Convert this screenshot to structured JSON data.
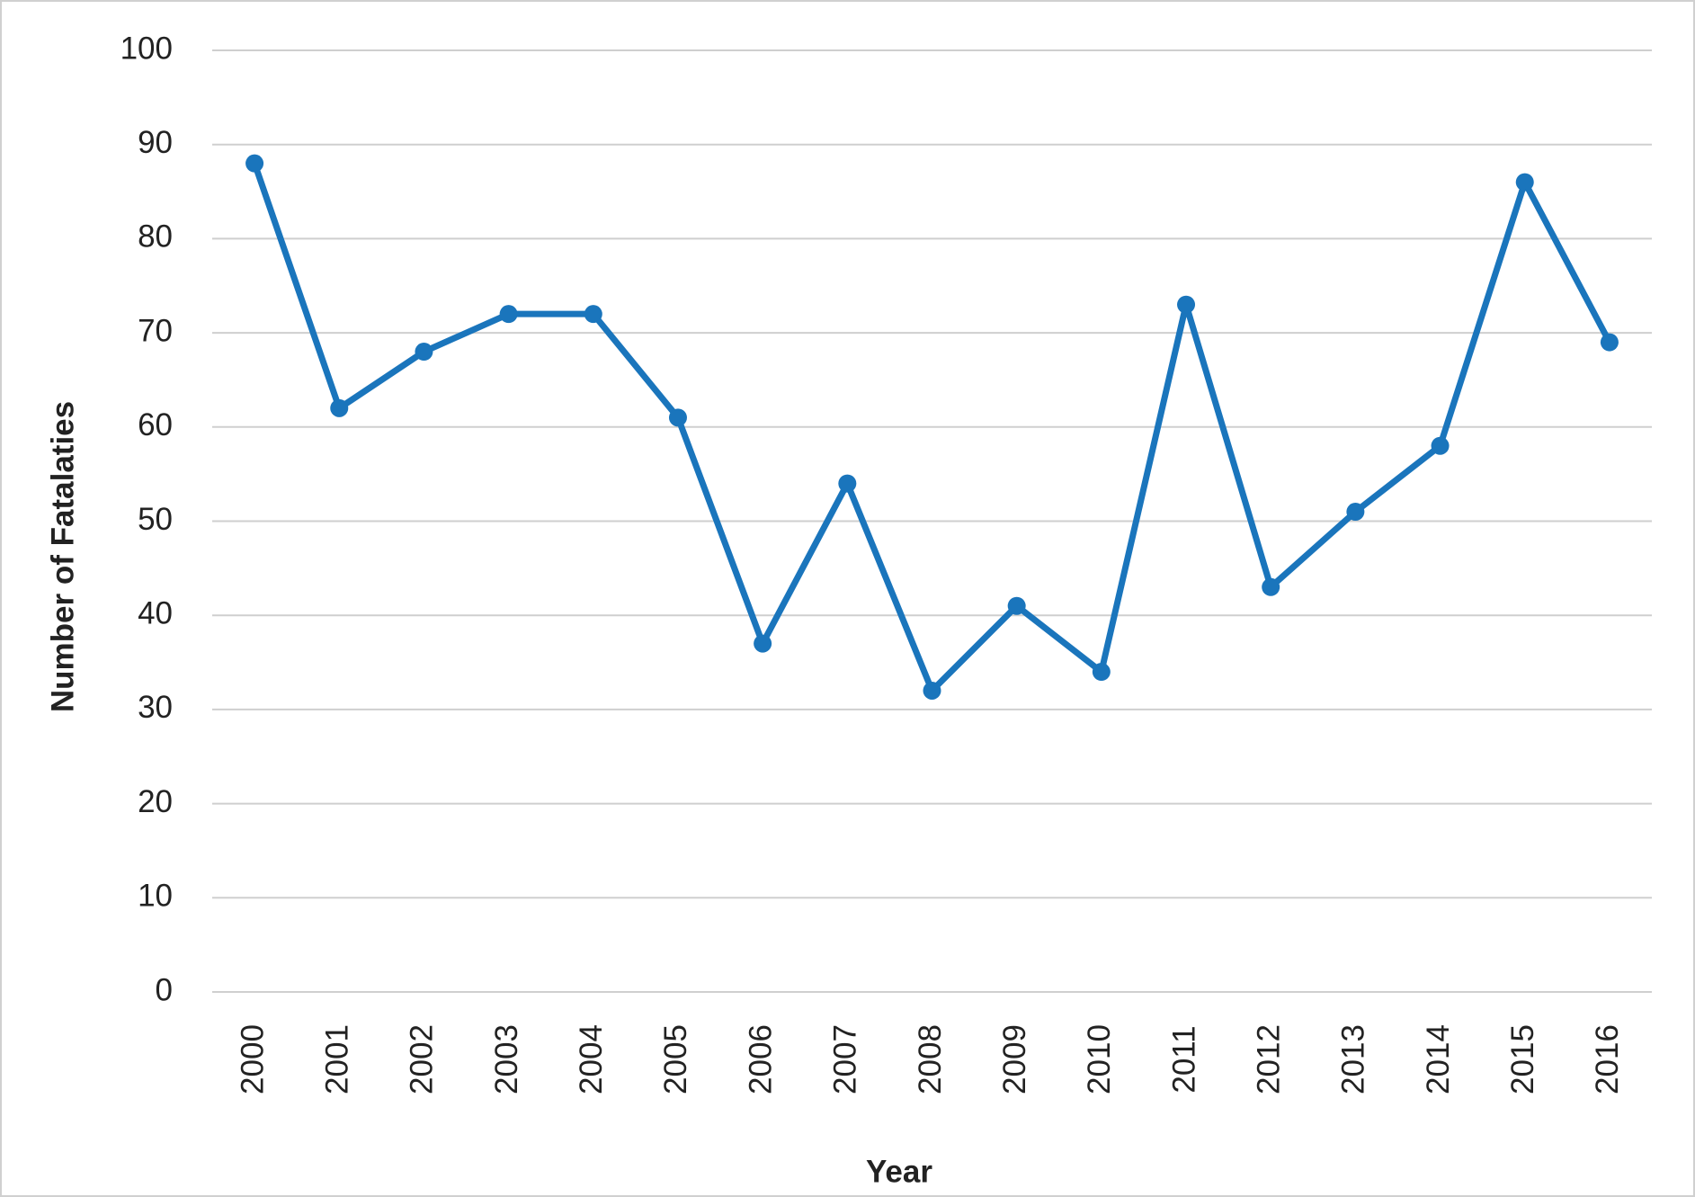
{
  "chart_data": {
    "type": "line",
    "x_label": "Year",
    "y_label": "Number of Fatalaties",
    "categories": [
      "2000",
      "2001",
      "2002",
      "2003",
      "2004",
      "2005",
      "2006",
      "2007",
      "2008",
      "2009",
      "2010",
      "2011",
      "2012",
      "2013",
      "2014",
      "2015",
      "2016"
    ],
    "series": [
      {
        "color": "#1a75bc",
        "values": [
          88,
          62,
          68,
          72,
          72,
          61,
          37,
          54,
          32,
          41,
          34,
          73,
          43,
          51,
          58,
          86,
          69
        ]
      }
    ],
    "ylim": [
      0,
      100
    ],
    "yticks": [
      0,
      10,
      20,
      30,
      40,
      50,
      60,
      70,
      80,
      90,
      100
    ],
    "grid": true
  }
}
